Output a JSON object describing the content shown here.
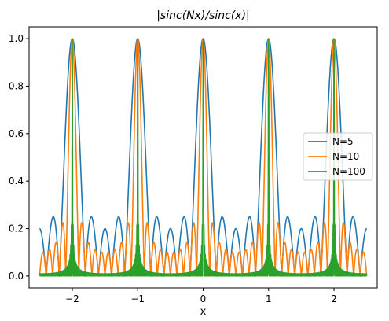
{
  "chart_data": {
    "type": "line",
    "title": "|sinc(Nx)/sinc(x)|",
    "xlabel": "x",
    "ylabel": "",
    "xlim": [
      -2.66,
      2.66
    ],
    "ylim": [
      -0.05,
      1.05
    ],
    "x_range": [
      -2.5,
      2.5
    ],
    "xticks": [
      -2,
      -1,
      0,
      1,
      2
    ],
    "xtick_labels": [
      "−2",
      "−1",
      "0",
      "1",
      "2"
    ],
    "yticks": [
      0.0,
      0.2,
      0.4,
      0.6,
      0.8,
      1.0
    ],
    "ytick_labels": [
      "0.0",
      "0.2",
      "0.4",
      "0.6",
      "0.8",
      "1.0"
    ],
    "function": "|sinc(Nx)/sinc(x)|",
    "series": [
      {
        "name": "N=5",
        "N": 5,
        "color": "#1f77b4"
      },
      {
        "name": "N=10",
        "N": 10,
        "color": "#ff7f0e"
      },
      {
        "name": "N=100",
        "N": 100,
        "color": "#2ca02c"
      }
    ],
    "legend_position": "right",
    "grid": false
  }
}
